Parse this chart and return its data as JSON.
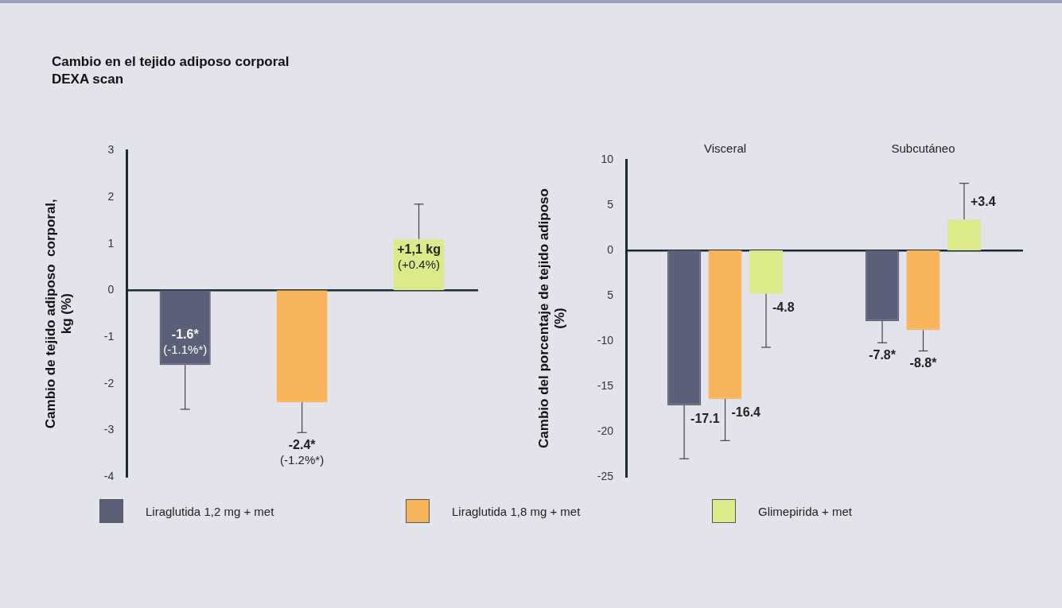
{
  "chart_data": [
    {
      "type": "bar",
      "title": "Cambio en el tejido adiposo corporal",
      "subtitle": "DEXA scan",
      "ylabel": "Cambio de tejido adiposo  corporal,\nkg (%)",
      "categories": [
        null,
        null,
        null
      ],
      "values": [
        -1.6,
        -2.4,
        1.1
      ],
      "colors": [
        "#5b6078",
        "#f7b45a",
        "#dcea8a"
      ],
      "errors": [
        [
          -2.55,
          -1.6
        ],
        [
          -3.05,
          -2.4
        ],
        [
          1.1,
          1.85
        ]
      ],
      "value_labels": [
        "-1.6*\n(-1.1%*)",
        "-2.4*\n(-1.2%*)",
        "+1,1 kg\n(+0.4%)"
      ],
      "ylim": [
        -4,
        3
      ],
      "yticks": [
        -4,
        -3,
        -2,
        -1,
        0,
        1,
        2,
        3
      ]
    },
    {
      "type": "bar",
      "ylabel": "Cambio del porcentaje de tejido adiposo\n(%)",
      "categories": [
        "Visceral",
        "Subcutáneo"
      ],
      "legend": "bottom",
      "series": [
        {
          "name": "Liraglutida 1,2 mg + met",
          "color": "#5b6078",
          "values": [
            -17.1,
            -7.8
          ],
          "errors": [
            [
              -23,
              -17.1
            ],
            [
              -10.2,
              -7.8
            ]
          ],
          "value_labels": [
            "-17.1",
            "-7.8*"
          ]
        },
        {
          "name": "Liraglutida 1,8 mg + met",
          "color": "#f7b45a",
          "values": [
            -16.4,
            -8.8
          ],
          "errors": [
            [
              -21,
              -16.4
            ],
            [
              -11.1,
              -8.8
            ]
          ],
          "value_labels": [
            "-16.4",
            "-8.8*"
          ]
        },
        {
          "name": "Glimepirida + met",
          "color": "#dcea8a",
          "values": [
            -4.8,
            3.4
          ],
          "errors": [
            [
              -10.7,
              -4.8
            ],
            [
              3.4,
              7.4
            ]
          ],
          "value_labels": [
            "-4.8",
            "+3.4"
          ]
        }
      ],
      "ylim": [
        -25,
        10
      ],
      "yticks": [
        -25,
        -20,
        -15,
        {
          "value": -10,
          "label": "-10"
        },
        {
          "value": -5,
          "label": "5"
        },
        0,
        5,
        10
      ]
    }
  ]
}
